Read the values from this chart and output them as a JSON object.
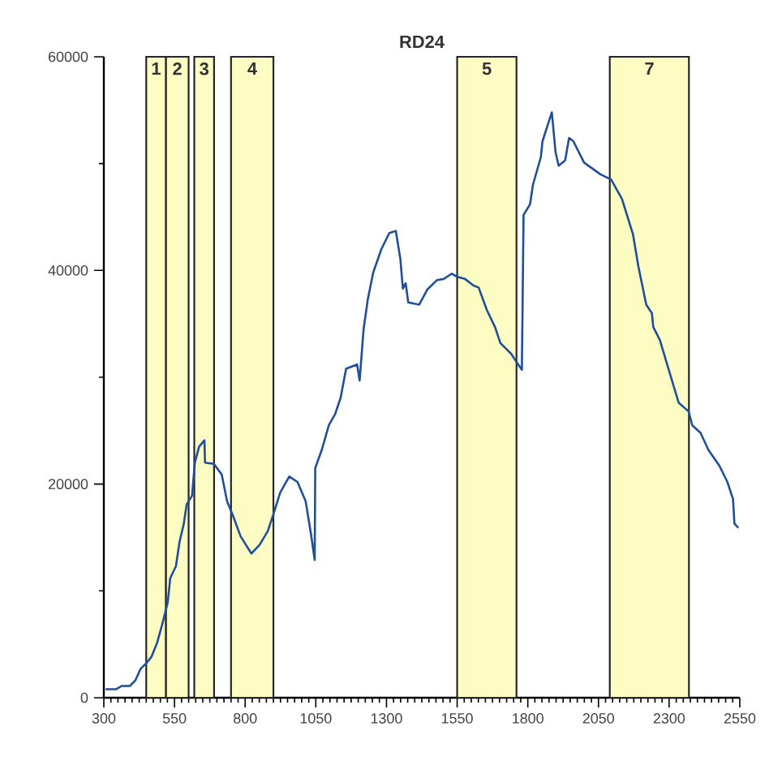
{
  "chart_data": {
    "type": "line",
    "title": "RD24",
    "xlim": [
      300,
      2550
    ],
    "xticks": [
      300,
      550,
      800,
      1050,
      1300,
      1550,
      1800,
      2050,
      2300,
      2550
    ],
    "ylim": [
      0,
      60000
    ],
    "yticks": [
      0,
      20000,
      40000,
      60000
    ],
    "marker": "none",
    "line_style": "solid",
    "bands": [
      {
        "axis": "x",
        "from": 450,
        "to": 520,
        "label": "1",
        "color": "#fdfcc2"
      },
      {
        "axis": "x",
        "from": 520,
        "to": 600,
        "label": "2",
        "color": "#fdfcc2"
      },
      {
        "axis": "x",
        "from": 620,
        "to": 690,
        "label": "3",
        "color": "#fdfcc2"
      },
      {
        "axis": "x",
        "from": 750,
        "to": 900,
        "label": "4",
        "color": "#fdfcc2"
      },
      {
        "axis": "x",
        "from": 1550,
        "to": 1760,
        "label": "5",
        "color": "#fdfcc2"
      },
      {
        "axis": "x",
        "from": 2090,
        "to": 2370,
        "label": "7",
        "color": "#fdfcc2"
      }
    ],
    "series": [
      {
        "color": "#1f4e9a",
        "x": [
          306,
          344,
          363,
          392,
          411,
          430,
          449,
          468,
          488,
          507,
          526,
          535,
          555,
          568,
          583,
          593,
          612,
          622,
          637,
          656,
          658,
          689,
          717,
          736,
          759,
          784,
          822,
          851,
          880,
          899,
          924,
          956,
          985,
          1014,
          1033,
          1046,
          1048,
          1071,
          1096,
          1119,
          1138,
          1157,
          1196,
          1205,
          1219,
          1234,
          1253,
          1282,
          1310,
          1333,
          1349,
          1358,
          1368,
          1377,
          1416,
          1444,
          1479,
          1502,
          1531,
          1550,
          1578,
          1607,
          1626,
          1655,
          1684,
          1703,
          1741,
          1766,
          1779,
          1785,
          1808,
          1818,
          1846,
          1852,
          1885,
          1898,
          1909,
          1932,
          1946,
          1961,
          1999,
          2057,
          2095,
          2133,
          2172,
          2191,
          2219,
          2239,
          2244,
          2267,
          2302,
          2334,
          2369,
          2382,
          2411,
          2439,
          2478,
          2506,
          2526,
          2531,
          2545
        ],
        "values": [
          800,
          800,
          1100,
          1100,
          1600,
          2700,
          3200,
          3800,
          5100,
          6900,
          8900,
          11200,
          12300,
          14600,
          16300,
          18100,
          18900,
          22000,
          23500,
          24100,
          22000,
          21900,
          20900,
          18400,
          16900,
          15100,
          13500,
          14300,
          15600,
          17100,
          19200,
          20700,
          20200,
          18400,
          15300,
          12900,
          21500,
          23200,
          25500,
          26600,
          28100,
          30800,
          31200,
          29700,
          34500,
          37300,
          39800,
          42000,
          43500,
          43700,
          41100,
          38300,
          38800,
          37000,
          36800,
          38200,
          39100,
          39200,
          39700,
          39400,
          39200,
          38600,
          38400,
          36300,
          34700,
          33200,
          32200,
          31200,
          30700,
          45200,
          46200,
          48000,
          50600,
          52100,
          54800,
          51100,
          49800,
          50300,
          52400,
          52100,
          50100,
          49000,
          48500,
          46700,
          43400,
          40400,
          36800,
          36000,
          34700,
          33500,
          30400,
          27600,
          26800,
          25500,
          24800,
          23200,
          21700,
          20200,
          18600,
          16300,
          15900
        ]
      }
    ]
  }
}
